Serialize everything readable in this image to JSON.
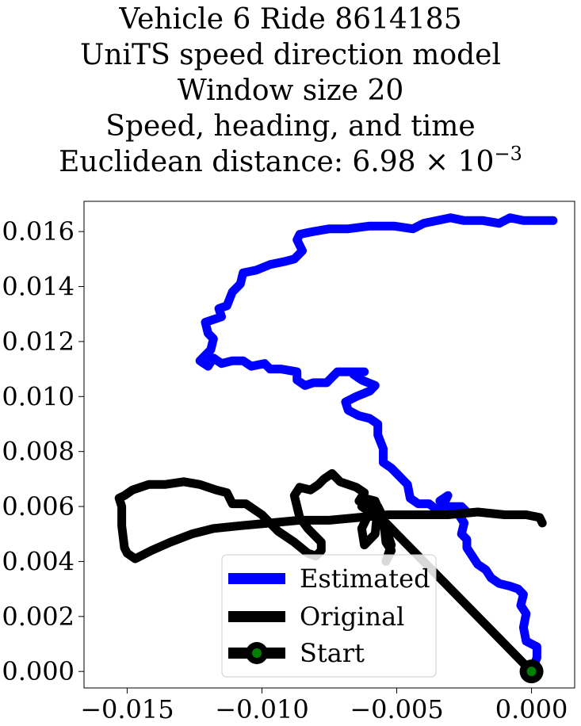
{
  "chart_data": {
    "type": "line",
    "title_lines": [
      "Vehicle 6 Ride 8614185",
      "UniTS speed direction model",
      "Window size 20",
      "Speed, heading, and time"
    ],
    "title_distance_prefix": "Euclidean distance: 6.98",
    "title_distance_times": "×",
    "title_distance_base": "10",
    "title_distance_exponent": "−3",
    "xlim": [
      -0.0166,
      0.0016
    ],
    "ylim": [
      -0.0006,
      0.0171
    ],
    "xticks": [
      -0.015,
      -0.01,
      -0.005,
      0.0
    ],
    "xtick_labels": [
      "−0.015",
      "−0.010",
      "−0.005",
      "0.000"
    ],
    "yticks": [
      0.0,
      0.002,
      0.004,
      0.006,
      0.008,
      0.01,
      0.012,
      0.014,
      0.016
    ],
    "ytick_labels": [
      "0.000",
      "0.002",
      "0.004",
      "0.006",
      "0.008",
      "0.010",
      "0.012",
      "0.014",
      "0.016"
    ],
    "grid": false,
    "legend_position": "lower center",
    "series": [
      {
        "name": "Estimated",
        "color": "#0000ff",
        "points": [
          [
            0.0,
            0.0
          ],
          [
            0.0002,
            0.0005
          ],
          [
            0.0002,
            0.0009
          ],
          [
            -0.0002,
            0.0011
          ],
          [
            -0.0003,
            0.0016
          ],
          [
            -0.0002,
            0.0021
          ],
          [
            -0.0004,
            0.0024
          ],
          [
            -0.0003,
            0.0028
          ],
          [
            -0.0005,
            0.003
          ],
          [
            -0.0008,
            0.0031
          ],
          [
            -0.0012,
            0.0032
          ],
          [
            -0.0015,
            0.0034
          ],
          [
            -0.0017,
            0.0037
          ],
          [
            -0.002,
            0.0039
          ],
          [
            -0.0022,
            0.0042
          ],
          [
            -0.0024,
            0.0045
          ],
          [
            -0.0024,
            0.0048
          ],
          [
            -0.0026,
            0.005
          ],
          [
            -0.0025,
            0.0054
          ],
          [
            -0.0027,
            0.0057
          ],
          [
            -0.0024,
            0.0058
          ],
          [
            -0.0026,
            0.006
          ],
          [
            -0.0031,
            0.006
          ],
          [
            -0.0034,
            0.0062
          ],
          [
            -0.0031,
            0.0064
          ],
          [
            -0.0034,
            0.0058
          ],
          [
            -0.0038,
            0.0061
          ],
          [
            -0.0042,
            0.0061
          ],
          [
            -0.0045,
            0.0063
          ],
          [
            -0.0046,
            0.0068
          ],
          [
            -0.0049,
            0.0071
          ],
          [
            -0.0052,
            0.0074
          ],
          [
            -0.0055,
            0.0076
          ],
          [
            -0.0055,
            0.0081
          ],
          [
            -0.0057,
            0.0086
          ],
          [
            -0.0057,
            0.009
          ],
          [
            -0.006,
            0.0092
          ],
          [
            -0.0064,
            0.0093
          ],
          [
            -0.0068,
            0.0095
          ],
          [
            -0.0069,
            0.0098
          ],
          [
            -0.0065,
            0.01
          ],
          [
            -0.006,
            0.0102
          ],
          [
            -0.0058,
            0.0104
          ],
          [
            -0.0063,
            0.0106
          ],
          [
            -0.0066,
            0.0108
          ],
          [
            -0.0062,
            0.0109
          ],
          [
            -0.0068,
            0.0109
          ],
          [
            -0.0072,
            0.0109
          ],
          [
            -0.0076,
            0.0105
          ],
          [
            -0.0081,
            0.0105
          ],
          [
            -0.0084,
            0.0104
          ],
          [
            -0.0087,
            0.0106
          ],
          [
            -0.0087,
            0.0109
          ],
          [
            -0.0093,
            0.011
          ],
          [
            -0.0097,
            0.011
          ],
          [
            -0.0099,
            0.0112
          ],
          [
            -0.0104,
            0.0111
          ],
          [
            -0.0107,
            0.0113
          ],
          [
            -0.0111,
            0.0113
          ],
          [
            -0.0115,
            0.0112
          ],
          [
            -0.0118,
            0.0114
          ],
          [
            -0.012,
            0.0111
          ],
          [
            -0.0123,
            0.0113
          ],
          [
            -0.0119,
            0.0117
          ],
          [
            -0.0118,
            0.0121
          ],
          [
            -0.012,
            0.0123
          ],
          [
            -0.0121,
            0.0127
          ],
          [
            -0.0115,
            0.0129
          ],
          [
            -0.0116,
            0.0132
          ],
          [
            -0.0113,
            0.0133
          ],
          [
            -0.0111,
            0.0138
          ],
          [
            -0.0108,
            0.0141
          ],
          [
            -0.0107,
            0.0145
          ],
          [
            -0.0102,
            0.0146
          ],
          [
            -0.0097,
            0.0148
          ],
          [
            -0.0092,
            0.0149
          ],
          [
            -0.0088,
            0.015
          ],
          [
            -0.0085,
            0.0153
          ],
          [
            -0.0087,
            0.0157
          ],
          [
            -0.0086,
            0.0159
          ],
          [
            -0.0081,
            0.016
          ],
          [
            -0.0075,
            0.0161
          ],
          [
            -0.0068,
            0.0161
          ],
          [
            -0.006,
            0.0162
          ],
          [
            -0.0051,
            0.0162
          ],
          [
            -0.0044,
            0.0161
          ],
          [
            -0.004,
            0.0163
          ],
          [
            -0.0035,
            0.0164
          ],
          [
            -0.003,
            0.0165
          ],
          [
            -0.0025,
            0.0164
          ],
          [
            -0.0018,
            0.0164
          ],
          [
            -0.0012,
            0.0163
          ],
          [
            -0.0008,
            0.0165
          ],
          [
            -0.0003,
            0.0164
          ],
          [
            0.0008,
            0.0164
          ]
        ]
      },
      {
        "name": "Original",
        "color": "#000000",
        "points": [
          [
            0.0,
            0.0
          ],
          [
            -0.0016,
            0.0016
          ],
          [
            -0.0033,
            0.0033
          ],
          [
            -0.0048,
            0.0048
          ],
          [
            -0.0055,
            0.0055
          ],
          [
            -0.0058,
            0.0062
          ],
          [
            -0.0062,
            0.0063
          ],
          [
            -0.0063,
            0.006
          ],
          [
            -0.006,
            0.0058
          ],
          [
            -0.0063,
            0.0052
          ],
          [
            -0.0062,
            0.0046
          ],
          [
            -0.0058,
            0.005
          ],
          [
            -0.0057,
            0.006
          ],
          [
            -0.0055,
            0.0056
          ],
          [
            -0.0054,
            0.0047
          ],
          [
            -0.0052,
            0.0044
          ],
          [
            -0.0054,
            0.004
          ],
          [
            -0.0052,
            0.0046
          ],
          [
            -0.0055,
            0.0055
          ],
          [
            -0.0058,
            0.0058
          ],
          [
            -0.0061,
            0.0062
          ],
          [
            -0.0064,
            0.0062
          ],
          [
            -0.0062,
            0.0065
          ],
          [
            -0.0065,
            0.0067
          ],
          [
            -0.0068,
            0.0068
          ],
          [
            -0.0071,
            0.0069
          ],
          [
            -0.0074,
            0.0072
          ],
          [
            -0.0077,
            0.007
          ],
          [
            -0.0079,
            0.0068
          ],
          [
            -0.0082,
            0.0066
          ],
          [
            -0.0086,
            0.0067
          ],
          [
            -0.0088,
            0.0064
          ],
          [
            -0.0087,
            0.006
          ],
          [
            -0.0086,
            0.0056
          ],
          [
            -0.0083,
            0.0052
          ],
          [
            -0.008,
            0.0049
          ],
          [
            -0.0078,
            0.0047
          ],
          [
            -0.0078,
            0.0044
          ],
          [
            -0.008,
            0.0042
          ],
          [
            -0.0083,
            0.0043
          ],
          [
            -0.0088,
            0.0047
          ],
          [
            -0.0094,
            0.0051
          ],
          [
            -0.01,
            0.0057
          ],
          [
            -0.0106,
            0.0061
          ],
          [
            -0.0111,
            0.0061
          ],
          [
            -0.0113,
            0.0065
          ],
          [
            -0.0117,
            0.0066
          ],
          [
            -0.0123,
            0.0068
          ],
          [
            -0.0129,
            0.0069
          ],
          [
            -0.0136,
            0.0068
          ],
          [
            -0.0142,
            0.0068
          ],
          [
            -0.0148,
            0.0066
          ],
          [
            -0.0151,
            0.0064
          ],
          [
            -0.0153,
            0.0063
          ],
          [
            -0.0152,
            0.006
          ],
          [
            -0.0152,
            0.0053
          ],
          [
            -0.0151,
            0.0045
          ],
          [
            -0.015,
            0.0043
          ],
          [
            -0.0147,
            0.0041
          ],
          [
            -0.0141,
            0.0044
          ],
          [
            -0.0134,
            0.0047
          ],
          [
            -0.0126,
            0.005
          ],
          [
            -0.0118,
            0.0052
          ],
          [
            -0.0108,
            0.0053
          ],
          [
            -0.0097,
            0.0054
          ],
          [
            -0.0086,
            0.0055
          ],
          [
            -0.0075,
            0.0055
          ],
          [
            -0.0064,
            0.0056
          ],
          [
            -0.0053,
            0.0057
          ],
          [
            -0.0042,
            0.0057
          ],
          [
            -0.0031,
            0.0057
          ],
          [
            -0.002,
            0.0058
          ],
          [
            -0.001,
            0.0057
          ],
          [
            -0.0002,
            0.0057
          ],
          [
            0.0003,
            0.0056
          ],
          [
            0.0004,
            0.0054
          ]
        ]
      }
    ],
    "start_marker": {
      "name": "Start",
      "point": [
        0.0,
        0.0
      ],
      "outer_color": "#000000",
      "inner_color": "#008000"
    }
  }
}
